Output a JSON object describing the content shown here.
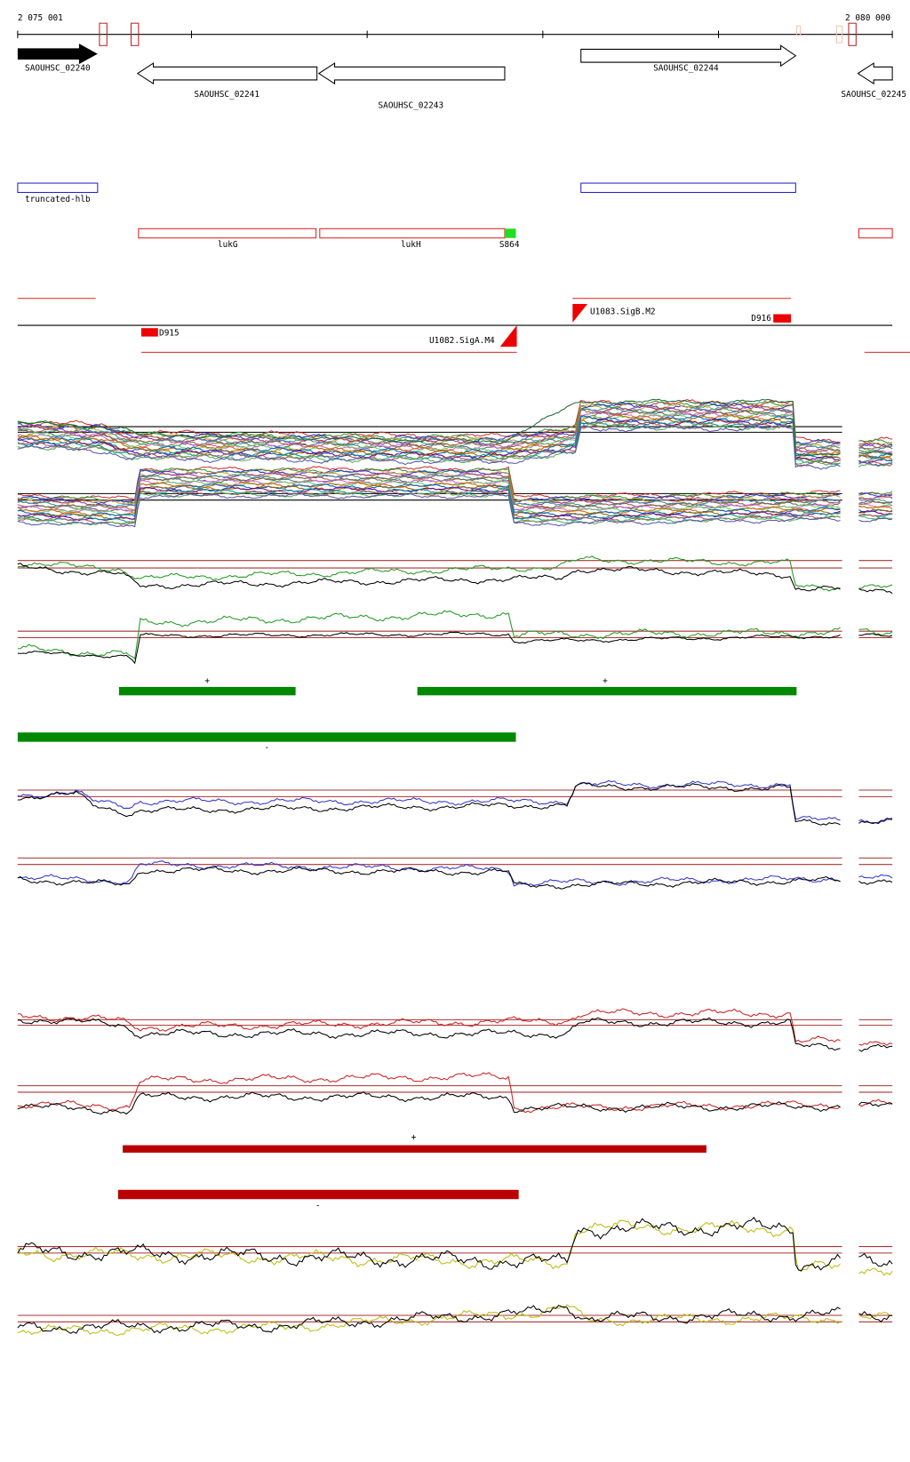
{
  "ruler": {
    "start": "2 075 001",
    "end": "2 080 000"
  },
  "genes": [
    "SAOUHSC_02240",
    "SAOUHSC_02241",
    "SAOUHSC_02243",
    "SAOUHSC_02244",
    "SAOUHSC_02245"
  ],
  "annotations": [
    "truncated-hlb",
    "lukG",
    "lukH",
    "S864"
  ],
  "regulators": [
    "D915",
    "U1083.SigB.M2",
    "D916",
    "U1082.SigA.M4"
  ],
  "strand_marks": [
    "+",
    "+",
    "-",
    "+",
    "-"
  ]
}
